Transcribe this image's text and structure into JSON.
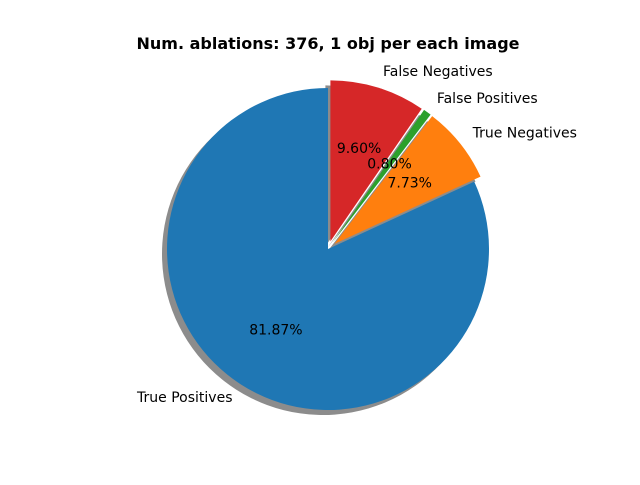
{
  "chart_data": {
    "type": "pie",
    "title": "Num. ablations: 376, 1 obj per each image",
    "categories": [
      "True Positives",
      "True Negatives",
      "False Positives",
      "False Negatives"
    ],
    "values": [
      81.87,
      7.73,
      0.8,
      9.6
    ],
    "percent_labels": [
      "81.87%",
      "7.73%",
      "0.80%",
      "9.60%"
    ],
    "colors": [
      "#1f77b4",
      "#ff7f0e",
      "#2ca02c",
      "#d62728"
    ],
    "exploded": [
      "True Negatives",
      "False Positives",
      "False Negatives"
    ],
    "shadow": true,
    "start_angle_deg": 90
  }
}
